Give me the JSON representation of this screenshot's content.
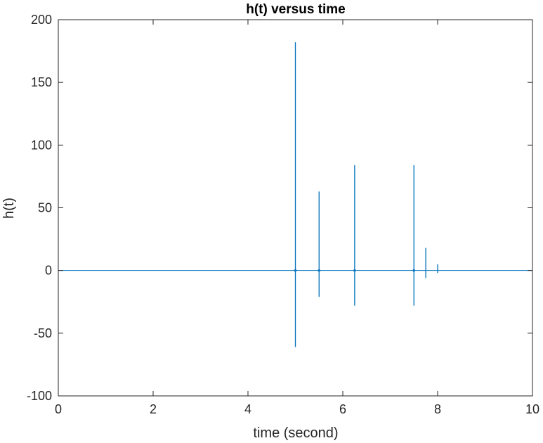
{
  "chart_data": {
    "type": "line",
    "title": "h(t) versus time",
    "xlabel": "time (second)",
    "ylabel": "h(t)",
    "xlim": [
      0,
      10
    ],
    "ylim": [
      -100,
      200
    ],
    "xticks": [
      0,
      2,
      4,
      6,
      8,
      10
    ],
    "yticks": [
      -100,
      -50,
      0,
      50,
      100,
      150,
      200
    ],
    "grid": false,
    "series": [
      {
        "color": "#0072BD",
        "baseline": 0,
        "spikes": [
          {
            "t": 5.0,
            "max": 182,
            "min": -61
          },
          {
            "t": 5.5,
            "max": 63,
            "min": -21
          },
          {
            "t": 6.25,
            "max": 84,
            "min": -28
          },
          {
            "t": 7.5,
            "max": 84,
            "min": -28
          },
          {
            "t": 7.75,
            "max": 18,
            "min": -6
          },
          {
            "t": 8.0,
            "max": 5,
            "min": -2
          }
        ]
      }
    ],
    "colors": {
      "axis": "#262626",
      "line": "#0072BD"
    }
  }
}
